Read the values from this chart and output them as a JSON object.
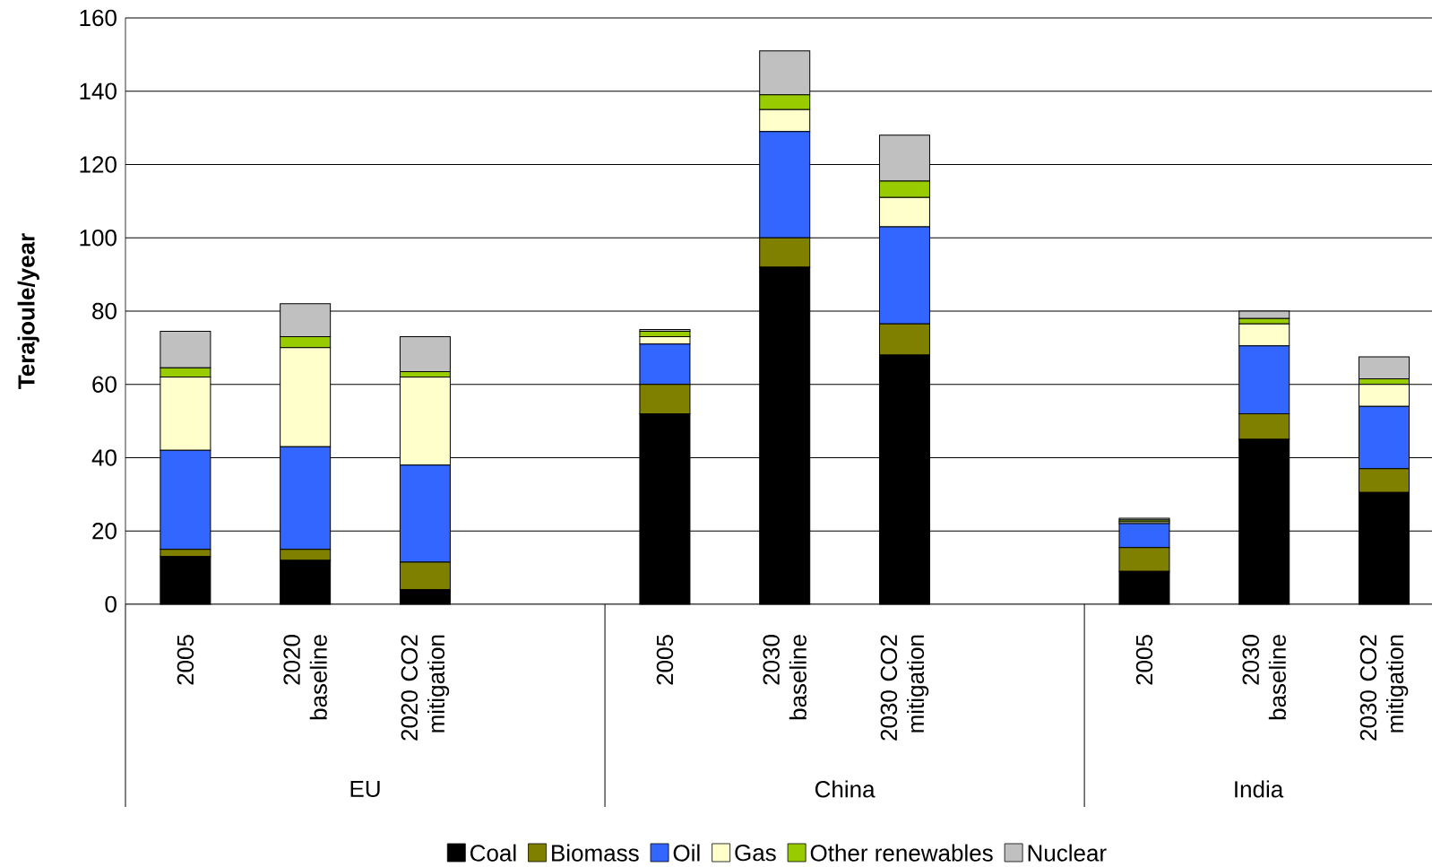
{
  "chart_data": {
    "type": "bar",
    "stacked": true,
    "ylabel": "Terajoule/year",
    "categories": [
      "2005",
      "2020 baseline",
      "2020 CO2 mitigation",
      null,
      "2005",
      "2030 baseline",
      "2030 CO2 mitigation",
      null,
      "2005",
      "2030 baseline",
      "2030 CO2 mitigation"
    ],
    "annotations": [
      "EU",
      "China",
      "India"
    ],
    "ylim": [
      0,
      160
    ],
    "yticks": [
      0,
      20,
      40,
      60,
      80,
      100,
      120,
      140,
      160
    ],
    "grid": "y",
    "legend": "bottom",
    "series": [
      {
        "name": "Coal",
        "color": "#000000",
        "values": [
          13,
          12,
          4,
          null,
          52,
          92,
          68,
          null,
          9,
          45,
          30.5
        ]
      },
      {
        "name": "Biomass",
        "color": "#808000",
        "values": [
          2,
          3,
          7.5,
          null,
          8,
          8,
          8.5,
          null,
          6.5,
          7,
          6.5
        ]
      },
      {
        "name": "Oil",
        "color": "#3366ff",
        "values": [
          27,
          28,
          26.5,
          null,
          11,
          29,
          26.5,
          null,
          6.5,
          18.5,
          17
        ]
      },
      {
        "name": "Gas",
        "color": "#ffffcc",
        "values": [
          20,
          27,
          24,
          null,
          2,
          6,
          8,
          null,
          0.5,
          6,
          6
        ]
      },
      {
        "name": "Other renewables",
        "color": "#99cc00",
        "values": [
          2.5,
          3,
          1.5,
          null,
          1.5,
          4,
          4.5,
          null,
          0.5,
          1.5,
          1.5
        ]
      },
      {
        "name": "Nuclear",
        "color": "#c0c0c0",
        "values": [
          10,
          9,
          9.5,
          null,
          0.5,
          12,
          12.5,
          null,
          0.5,
          2,
          6
        ]
      }
    ]
  }
}
